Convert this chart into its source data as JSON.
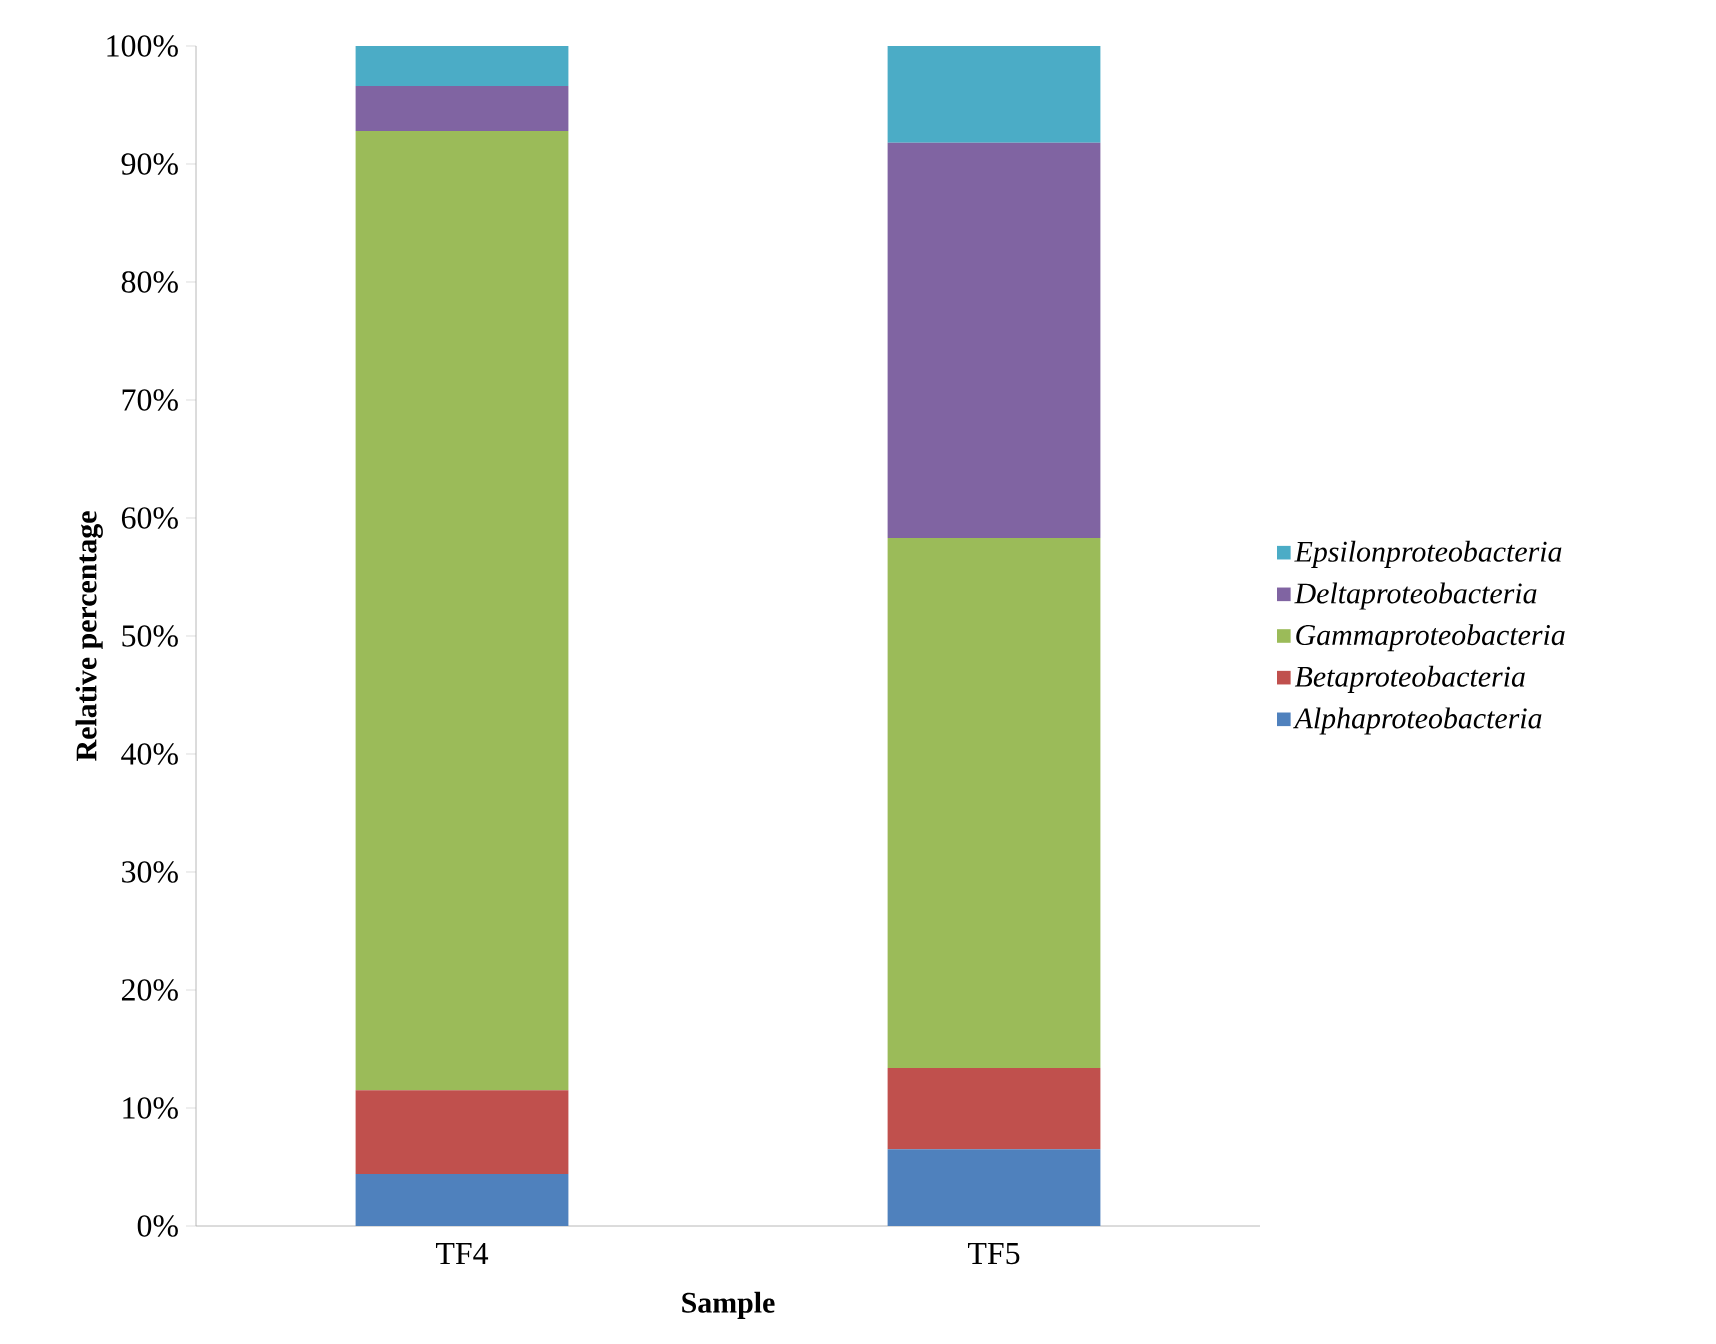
{
  "chart_data": {
    "type": "bar",
    "stacked": true,
    "xlabel": "Sample",
    "ylabel": "Relative percentage",
    "categories": [
      "TF4",
      "TF5"
    ],
    "series": [
      {
        "name": "Alphaproteobacteria",
        "color": "#4f81bd",
        "values": [
          4.4,
          6.5
        ]
      },
      {
        "name": "Betaproteobacteria",
        "color": "#c0504d",
        "values": [
          7.1,
          6.9
        ]
      },
      {
        "name": "Gammaproteobacteria",
        "color": "#9bbb59",
        "values": [
          81.3,
          44.9
        ]
      },
      {
        "name": "Deltaproteobacteria",
        "color": "#8064a2",
        "values": [
          3.8,
          33.5
        ]
      },
      {
        "name": "Epsilonproteobacteria",
        "color": "#4bacc6",
        "values": [
          3.4,
          8.2
        ]
      }
    ],
    "ylim": [
      0,
      100
    ],
    "yticks": [
      {
        "value": 0,
        "label": "0%"
      },
      {
        "value": 10,
        "label": "10%"
      },
      {
        "value": 20,
        "label": "20%"
      },
      {
        "value": 30,
        "label": "30%"
      },
      {
        "value": 40,
        "label": "40%"
      },
      {
        "value": 50,
        "label": "50%"
      },
      {
        "value": 60,
        "label": "60%"
      },
      {
        "value": 70,
        "label": "70%"
      },
      {
        "value": 80,
        "label": "80%"
      },
      {
        "value": 90,
        "label": "90%"
      },
      {
        "value": 100,
        "label": "100%"
      }
    ],
    "legend": "right"
  }
}
